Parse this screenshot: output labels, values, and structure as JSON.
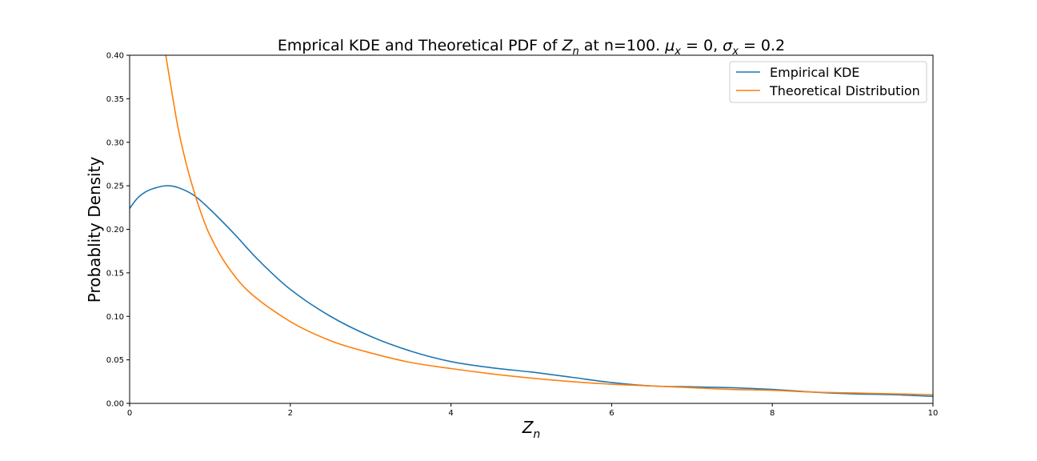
{
  "chart_data": {
    "type": "line",
    "title": {
      "prefix": "Emprical KDE and Theoretical PDF of ",
      "var": "Z",
      "var_sub": "n",
      "middle": " at n=100. ",
      "mu": "μ",
      "mu_sub": "x",
      "mu_eq": " = 0, ",
      "sigma": "σ",
      "sigma_sub": "x",
      "sigma_eq": " = 0.2"
    },
    "xlabel": {
      "var": "Z",
      "sub": "n"
    },
    "ylabel": "Probablity Density",
    "xlim": [
      0,
      10
    ],
    "ylim": [
      0,
      0.4
    ],
    "xticks": [
      "0",
      "2",
      "4",
      "6",
      "8",
      "10"
    ],
    "yticks": [
      "0.00",
      "0.05",
      "0.10",
      "0.15",
      "0.20",
      "0.25",
      "0.30",
      "0.35",
      "0.40"
    ],
    "grid": false,
    "legend_position": "top-right",
    "series": [
      {
        "name": "Empirical KDE",
        "color": "#1f77b4",
        "x": [
          0,
          0.1,
          0.2,
          0.3,
          0.45,
          0.6,
          0.8,
          1.0,
          1.3,
          1.6,
          2.0,
          2.5,
          3.0,
          3.5,
          4.0,
          4.5,
          5.0,
          5.5,
          6.0,
          6.5,
          7.0,
          7.5,
          8.0,
          8.5,
          9.0,
          9.5,
          10.0
        ],
        "y": [
          0.224,
          0.236,
          0.243,
          0.247,
          0.25,
          0.248,
          0.239,
          0.223,
          0.195,
          0.165,
          0.131,
          0.1,
          0.077,
          0.06,
          0.048,
          0.041,
          0.036,
          0.03,
          0.024,
          0.02,
          0.019,
          0.018,
          0.016,
          0.013,
          0.011,
          0.01,
          0.008
        ]
      },
      {
        "name": "Theoretical Distribution",
        "color": "#ff7f0e",
        "x": [
          0.45,
          0.5,
          0.6,
          0.7,
          0.8,
          0.9,
          1.0,
          1.2,
          1.5,
          2.0,
          2.5,
          3.0,
          3.5,
          4.0,
          4.5,
          5.0,
          5.5,
          6.0,
          6.5,
          7.0,
          7.5,
          8.0,
          8.5,
          9.0,
          9.5,
          10.0
        ],
        "y": [
          0.4,
          0.372,
          0.318,
          0.277,
          0.244,
          0.216,
          0.193,
          0.16,
          0.127,
          0.094,
          0.072,
          0.058,
          0.047,
          0.04,
          0.034,
          0.029,
          0.025,
          0.022,
          0.02,
          0.018,
          0.016,
          0.015,
          0.013,
          0.012,
          0.011,
          0.01
        ]
      }
    ]
  }
}
